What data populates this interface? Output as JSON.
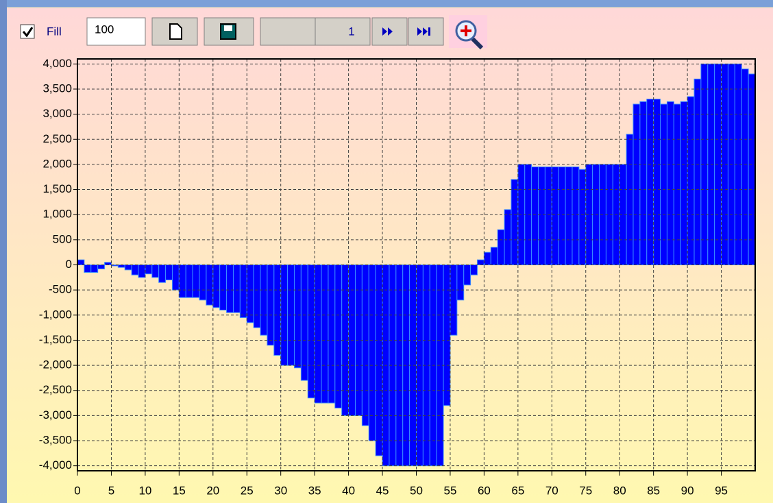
{
  "toolbar": {
    "fill_label": "Fill",
    "fill_checked": true,
    "points_input": "100",
    "page_button": "1"
  },
  "chart_data": {
    "type": "bar",
    "x": [
      0,
      1,
      2,
      3,
      4,
      5,
      6,
      7,
      8,
      9,
      10,
      11,
      12,
      13,
      14,
      15,
      16,
      17,
      18,
      19,
      20,
      21,
      22,
      23,
      24,
      25,
      26,
      27,
      28,
      29,
      30,
      31,
      32,
      33,
      34,
      35,
      36,
      37,
      38,
      39,
      40,
      41,
      42,
      43,
      44,
      45,
      46,
      47,
      48,
      49,
      50,
      51,
      52,
      53,
      54,
      55,
      56,
      57,
      58,
      59,
      60,
      61,
      62,
      63,
      64,
      65,
      66,
      67,
      68,
      69,
      70,
      71,
      72,
      73,
      74,
      75,
      76,
      77,
      78,
      79,
      80,
      81,
      82,
      83,
      84,
      85,
      86,
      87,
      88,
      89,
      90,
      91,
      92,
      93,
      94,
      95,
      96,
      97,
      98,
      99
    ],
    "values": [
      100,
      -150,
      -150,
      -80,
      50,
      -20,
      -50,
      -100,
      -200,
      -250,
      -180,
      -250,
      -350,
      -300,
      -500,
      -650,
      -650,
      -650,
      -700,
      -800,
      -850,
      -900,
      -950,
      -950,
      -1050,
      -1150,
      -1250,
      -1400,
      -1600,
      -1800,
      -2000,
      -2000,
      -2050,
      -2300,
      -2650,
      -2750,
      -2750,
      -2750,
      -2850,
      -3000,
      -3000,
      -3000,
      -3200,
      -3500,
      -3800,
      -4000,
      -4000,
      -4000,
      -4000,
      -4000,
      -4000,
      -4000,
      -4000,
      -4000,
      -2800,
      -1400,
      -700,
      -400,
      -200,
      100,
      250,
      350,
      700,
      1100,
      1700,
      2000,
      2000,
      1950,
      1950,
      1950,
      1950,
      1950,
      1950,
      1950,
      1900,
      2000,
      2000,
      2000,
      2000,
      2000,
      2000,
      2600,
      3200,
      3250,
      3300,
      3300,
      3200,
      3250,
      3200,
      3250,
      3350,
      3700,
      4000,
      4000,
      4000,
      4000,
      4000,
      4000,
      3900,
      3800
    ],
    "color": "#0000ff",
    "xlim": [
      0,
      100
    ],
    "xticks": [
      0,
      5,
      10,
      15,
      20,
      25,
      30,
      35,
      40,
      45,
      50,
      55,
      60,
      65,
      70,
      75,
      80,
      85,
      90,
      95
    ],
    "ylim": [
      -4100,
      4100
    ],
    "yticks": [
      {
        "value": 4000,
        "label": "4,000"
      },
      {
        "value": 3500,
        "label": "3,500"
      },
      {
        "value": 3000,
        "label": "3,000"
      },
      {
        "value": 2500,
        "label": "2,500"
      },
      {
        "value": 2000,
        "label": "2,000"
      },
      {
        "value": 1500,
        "label": "1,500"
      },
      {
        "value": 1000,
        "label": "1,000"
      },
      500,
      0,
      -500,
      {
        "value": -1000,
        "label": "-1,000"
      },
      {
        "value": -1500,
        "label": "-1,500"
      },
      {
        "value": -2000,
        "label": "-2,000"
      },
      {
        "value": -2500,
        "label": "-2,500"
      },
      {
        "value": -3000,
        "label": "-3,000"
      },
      {
        "value": -3500,
        "label": "-3,500"
      },
      {
        "value": -4000,
        "label": "-4,000"
      }
    ],
    "grid": true
  }
}
